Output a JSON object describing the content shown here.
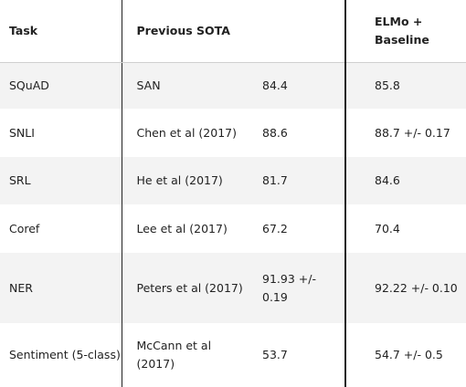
{
  "table": {
    "headers": {
      "task": "Task",
      "previous_sota": "Previous SOTA",
      "elmo_baseline": "ELMo + Baseline"
    },
    "rows": [
      {
        "task": "SQuAD",
        "method": "SAN",
        "score": "84.4",
        "elmo": "85.8"
      },
      {
        "task": "SNLI",
        "method": "Chen et al (2017)",
        "score": "88.6",
        "elmo": "88.7 +/- 0.17"
      },
      {
        "task": "SRL",
        "method": "He et al (2017)",
        "score": "81.7",
        "elmo": "84.6"
      },
      {
        "task": "Coref",
        "method": "Lee et al (2017)",
        "score": "67.2",
        "elmo": "70.4"
      },
      {
        "task": "NER",
        "method": "Peters et al (2017)",
        "score": "91.93 +/- 0.19",
        "elmo": "92.22 +/- 0.10"
      },
      {
        "task": "Sentiment (5-class)",
        "method": "McCann et al (2017)",
        "score": "53.7",
        "elmo": "54.7 +/- 0.5"
      }
    ]
  },
  "colors": {
    "text": "#222222",
    "stripe": "#f3f3f3",
    "background": "#ffffff",
    "divider": "#222222"
  }
}
